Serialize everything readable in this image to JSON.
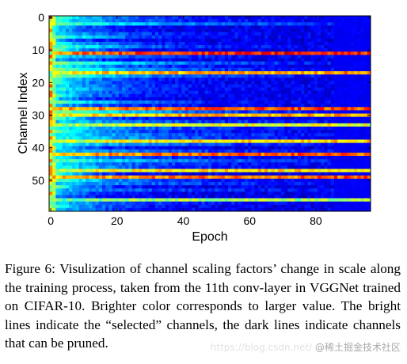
{
  "chart_data": {
    "type": "heatmap",
    "title": "",
    "xlabel": "Epoch",
    "ylabel": "Channel Index",
    "x_range": [
      0,
      96
    ],
    "y_range": [
      0,
      59
    ],
    "y_inverted": true,
    "x_ticks": [
      0,
      20,
      40,
      60,
      80
    ],
    "y_ticks": [
      0,
      10,
      20,
      30,
      40,
      50
    ],
    "colormap": "jet",
    "bright_channels": [
      {
        "channel": 11,
        "intensity": 0.85
      },
      {
        "channel": 17,
        "intensity": 0.72
      },
      {
        "channel": 28,
        "intensity": 0.8
      },
      {
        "channel": 30,
        "intensity": 0.7
      },
      {
        "channel": 33,
        "intensity": 0.62
      },
      {
        "channel": 38,
        "intensity": 0.66
      },
      {
        "channel": 42,
        "intensity": 0.78
      },
      {
        "channel": 47,
        "intensity": 0.66
      },
      {
        "channel": 49,
        "intensity": 0.78
      },
      {
        "channel": 56,
        "intensity": 0.55
      }
    ]
  },
  "caption": "Figure 6: Visulization of channel scaling factors’ change in scale along the training process, taken from the 11th conv-layer in VGGNet trained on CIFAR-10. Brighter color corresponds to larger value. The bright lines indicate the “selected” channels, the dark lines indicate channels that can be pruned.",
  "watermark": "@稀土掘金技术社区",
  "watermark_url": "https://blog.csdn.net/"
}
